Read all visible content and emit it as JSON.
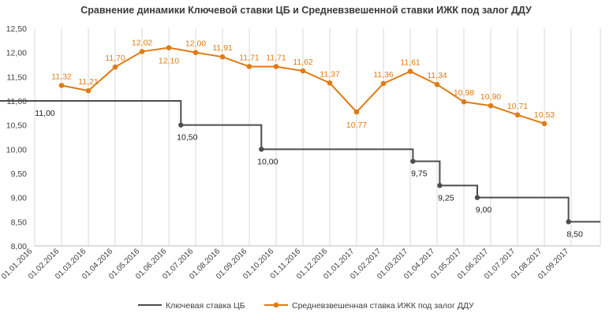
{
  "chart_data": {
    "type": "line",
    "title": "Сравнение динамики Ключевой ставки ЦБ  и Средневзвешенной ставки ИЖК под залог ДДУ",
    "xlabel": "",
    "ylabel": "",
    "x_ticks": [
      "01.01.2016",
      "01.02.2016",
      "01.03.2016",
      "01.04.2016",
      "01.05.2016",
      "01.06.2016",
      "01.07.2016",
      "01.08.2016",
      "01.09.2016",
      "01.10.2016",
      "01.11.2016",
      "01.12.2016",
      "01.01.2017",
      "01.02.2017",
      "01.03.2017",
      "01.04.2017",
      "01.05.2017",
      "01.06.2017",
      "01.07.2017",
      "01.08.2017",
      "01.09.2017"
    ],
    "y_ticks": [
      "8,00",
      "8,50",
      "9,00",
      "9,50",
      "10,00",
      "10,50",
      "11,00",
      "11,50",
      "12,00",
      "12,50"
    ],
    "ylim": [
      8.0,
      12.5
    ],
    "grid": "vertical",
    "legend_position": "bottom",
    "series": [
      {
        "name": "Ключевая ставка ЦБ",
        "color": "#4d4d4d",
        "style": "step",
        "x": [
          0,
          5.45,
          8.45,
          14.1,
          15.1,
          16.5,
          19.9
        ],
        "values": [
          11.0,
          10.5,
          10.0,
          9.75,
          9.25,
          9.0,
          8.5
        ],
        "labels": [
          "11,00",
          "10,50",
          "10,00",
          "9,75",
          "9,25",
          "9,00",
          "8,50"
        ],
        "marker_points": [
          false,
          true,
          true,
          true,
          true,
          true,
          true
        ]
      },
      {
        "name": "Средневзвешенная ставка ИЖК под залог ДДУ",
        "color": "#e07b12",
        "style": "line",
        "x": [
          1,
          2,
          3,
          4,
          5,
          6,
          7,
          8,
          9,
          10,
          11,
          12,
          13,
          14,
          15,
          16,
          17,
          18,
          19
        ],
        "values": [
          11.32,
          11.21,
          11.7,
          12.02,
          12.1,
          12.0,
          11.91,
          11.71,
          11.71,
          11.62,
          11.37,
          10.77,
          11.36,
          11.61,
          11.34,
          10.98,
          10.9,
          10.71,
          10.53
        ],
        "labels": [
          "11,32",
          "11,21",
          "11,70",
          "12,02",
          "12,10",
          "12,00",
          "11,91",
          "11,71",
          "11,71",
          "11,62",
          "11,37",
          "10,77",
          "11,36",
          "11,61",
          "11,34",
          "10,98",
          "10,90",
          "10,71",
          "10,53"
        ]
      }
    ]
  }
}
